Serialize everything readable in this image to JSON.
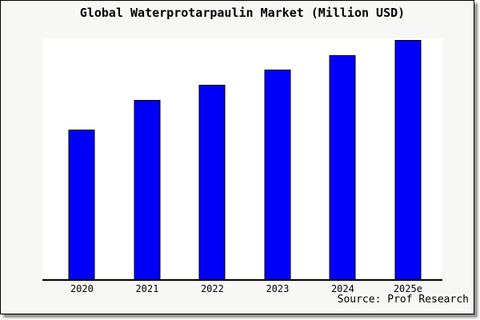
{
  "title": "Global Waterprotarpaulin Market (Million USD)",
  "source": "Source: Prof Research",
  "chart_data": {
    "type": "bar",
    "title": "Global Waterprotarpaulin Market (Million USD)",
    "categories": [
      "2020",
      "2021",
      "2022",
      "2023",
      "2024",
      "2025e"
    ],
    "values": [
      100,
      120,
      130,
      140,
      150,
      160
    ],
    "values_note": "estimated from bar heights; no y-axis labels shown",
    "xlabel": "",
    "ylabel": "",
    "ylim": [
      0,
      161
    ],
    "grid": false,
    "legend": false,
    "annotation": "Source: Prof Research",
    "colors": {
      "bar_fill": "#0000fa",
      "bar_edge": "#000000",
      "axis_line": "#000000",
      "panel_background": "#f7f7f5",
      "plot_background": "#ffffff",
      "text": "#000000",
      "panel_border": "#000000",
      "shadow": "#8c8c8c"
    }
  }
}
